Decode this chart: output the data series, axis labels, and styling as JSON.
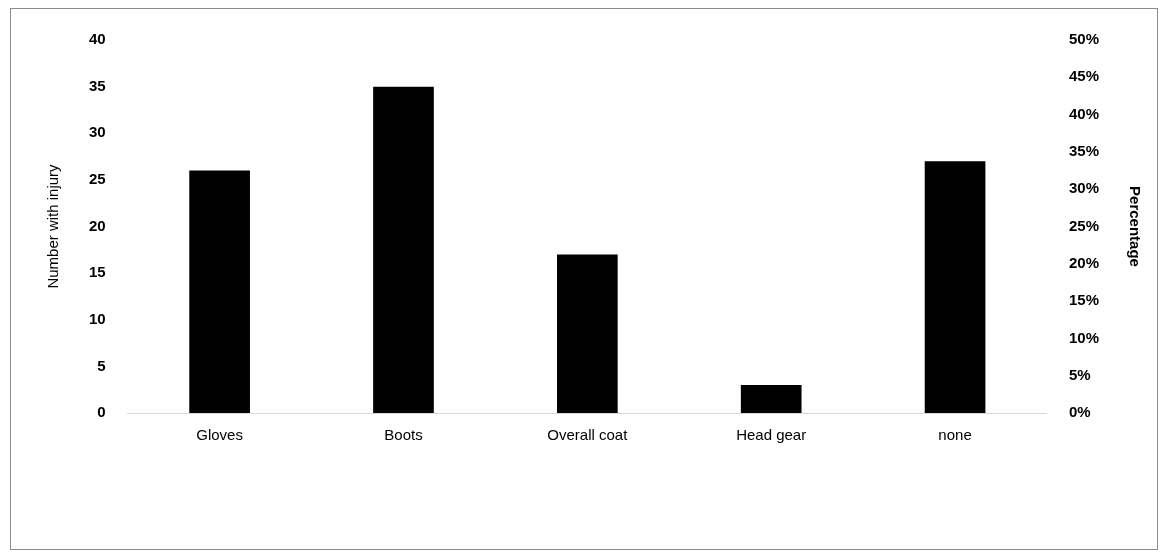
{
  "chart_data": {
    "type": "bar",
    "categories": [
      "Gloves",
      "Boots",
      "Overall coat",
      "Head gear",
      "none"
    ],
    "values": [
      26,
      35,
      17,
      3,
      27
    ],
    "color": "#000000",
    "ylabel": "Number with injury",
    "y2label": "Percentage",
    "ylim": [
      0,
      40
    ],
    "yticks": [
      0,
      5,
      10,
      15,
      20,
      25,
      30,
      35,
      40
    ],
    "y2lim": [
      0,
      50
    ],
    "y2ticks": [
      {
        "value": 0,
        "label": "0%"
      },
      {
        "value": 5,
        "label": "5%"
      },
      {
        "value": 10,
        "label": "10%"
      },
      {
        "value": 15,
        "label": "15%"
      },
      {
        "value": 20,
        "label": "20%"
      },
      {
        "value": 25,
        "label": "25%"
      },
      {
        "value": 30,
        "label": "30%"
      },
      {
        "value": 35,
        "label": "35%"
      },
      {
        "value": 40,
        "label": "40%"
      },
      {
        "value": 45,
        "label": "45%"
      },
      {
        "value": 50,
        "label": "50%"
      }
    ],
    "grid": false,
    "legend": false
  }
}
